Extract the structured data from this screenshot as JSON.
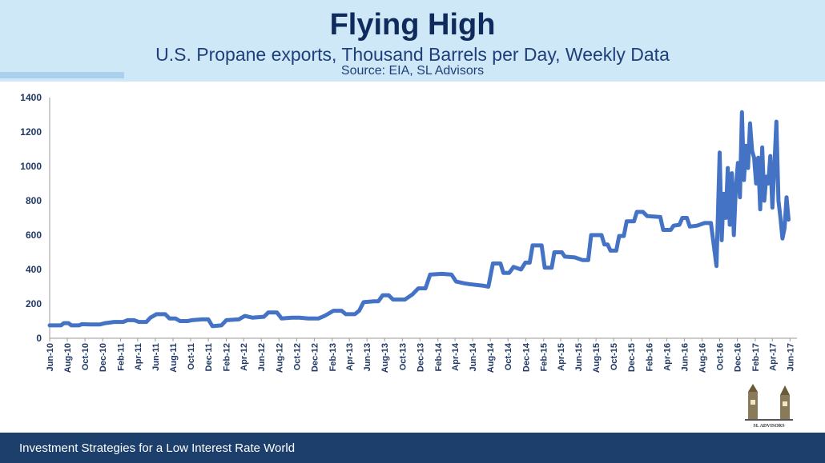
{
  "header": {
    "title": "Flying High",
    "subtitle": "U.S. Propane exports, Thousand Barrels per Day, Weekly Data",
    "source": "Source: EIA, SL Advisors"
  },
  "footer": {
    "text": "Investment Strategies for a Low Interest Rate World"
  },
  "logo": {
    "text": "SL ADVISORS"
  },
  "colors": {
    "line": "#4472c4",
    "header_bg": "#cfe8f7",
    "footer_bg": "#1c3f6b",
    "title": "#0f2a5c"
  },
  "chart_data": {
    "type": "line",
    "title": "",
    "xlabel": "",
    "ylabel": "",
    "ylim": [
      0,
      1400
    ],
    "yticks": [
      0,
      200,
      400,
      600,
      800,
      1000,
      1200,
      1400
    ],
    "xlim": [
      "2010-06-01",
      "2017-06-25"
    ],
    "x_tick_labels": [
      "Jun-10",
      "Aug-10",
      "Oct-10",
      "Dec-10",
      "Feb-11",
      "Apr-11",
      "Jun-11",
      "Aug-11",
      "Oct-11",
      "Dec-11",
      "Feb-12",
      "Apr-12",
      "Jun-12",
      "Aug-12",
      "Oct-12",
      "Dec-12",
      "Feb-13",
      "Apr-13",
      "Jun-13",
      "Aug-13",
      "Oct-13",
      "Dec-13",
      "Feb-14",
      "Apr-14",
      "Jun-14",
      "Aug-14",
      "Oct-14",
      "Dec-14",
      "Feb-15",
      "Apr-15",
      "Jun-15",
      "Aug-15",
      "Oct-15",
      "Dec-15",
      "Feb-16",
      "Apr-16",
      "Jun-16",
      "Aug-16",
      "Oct-16",
      "Dec-16",
      "Feb-17",
      "Apr-17",
      "Jun-17"
    ],
    "grid": false,
    "legend": "none",
    "series": [
      {
        "values": [
          [
            "2010-06-01",
            75
          ],
          [
            "2010-07-10",
            75
          ],
          [
            "2010-07-20",
            88
          ],
          [
            "2010-08-05",
            88
          ],
          [
            "2010-08-15",
            75
          ],
          [
            "2010-09-10",
            75
          ],
          [
            "2010-09-20",
            82
          ],
          [
            "2010-10-20",
            80
          ],
          [
            "2010-11-20",
            80
          ],
          [
            "2010-12-10",
            88
          ],
          [
            "2011-01-10",
            95
          ],
          [
            "2011-02-10",
            95
          ],
          [
            "2011-02-25",
            105
          ],
          [
            "2011-03-20",
            105
          ],
          [
            "2011-04-05",
            95
          ],
          [
            "2011-05-01",
            95
          ],
          [
            "2011-05-15",
            120
          ],
          [
            "2011-06-05",
            140
          ],
          [
            "2011-07-05",
            140
          ],
          [
            "2011-07-20",
            115
          ],
          [
            "2011-08-10",
            115
          ],
          [
            "2011-08-25",
            100
          ],
          [
            "2011-09-20",
            100
          ],
          [
            "2011-10-05",
            105
          ],
          [
            "2011-11-10",
            110
          ],
          [
            "2011-12-01",
            110
          ],
          [
            "2011-12-15",
            70
          ],
          [
            "2012-01-15",
            75
          ],
          [
            "2012-02-01",
            105
          ],
          [
            "2012-03-15",
            110
          ],
          [
            "2012-04-05",
            130
          ],
          [
            "2012-05-01",
            120
          ],
          [
            "2012-06-10",
            125
          ],
          [
            "2012-06-25",
            150
          ],
          [
            "2012-07-25",
            150
          ],
          [
            "2012-08-10",
            115
          ],
          [
            "2012-09-15",
            120
          ],
          [
            "2012-10-10",
            120
          ],
          [
            "2012-11-10",
            115
          ],
          [
            "2012-12-15",
            115
          ],
          [
            "2013-01-05",
            130
          ],
          [
            "2013-02-05",
            160
          ],
          [
            "2013-03-05",
            160
          ],
          [
            "2013-03-20",
            140
          ],
          [
            "2013-04-20",
            140
          ],
          [
            "2013-05-05",
            160
          ],
          [
            "2013-05-20",
            210
          ],
          [
            "2013-06-25",
            215
          ],
          [
            "2013-07-10",
            215
          ],
          [
            "2013-07-25",
            250
          ],
          [
            "2013-08-15",
            250
          ],
          [
            "2013-08-30",
            225
          ],
          [
            "2013-10-10",
            225
          ],
          [
            "2013-11-05",
            255
          ],
          [
            "2013-11-25",
            290
          ],
          [
            "2013-12-20",
            290
          ],
          [
            "2014-01-05",
            370
          ],
          [
            "2014-02-15",
            375
          ],
          [
            "2014-03-20",
            370
          ],
          [
            "2014-04-05",
            330
          ],
          [
            "2014-05-01",
            320
          ],
          [
            "2014-05-20",
            315
          ],
          [
            "2014-07-10",
            305
          ],
          [
            "2014-07-25",
            300
          ],
          [
            "2014-08-10",
            435
          ],
          [
            "2014-09-05",
            435
          ],
          [
            "2014-09-15",
            380
          ],
          [
            "2014-10-05",
            380
          ],
          [
            "2014-10-20",
            415
          ],
          [
            "2014-11-15",
            400
          ],
          [
            "2014-11-30",
            440
          ],
          [
            "2014-12-15",
            440
          ],
          [
            "2014-12-25",
            540
          ],
          [
            "2015-01-25",
            540
          ],
          [
            "2015-02-05",
            410
          ],
          [
            "2015-03-01",
            410
          ],
          [
            "2015-03-10",
            500
          ],
          [
            "2015-04-05",
            500
          ],
          [
            "2015-04-15",
            475
          ],
          [
            "2015-05-20",
            470
          ],
          [
            "2015-06-15",
            455
          ],
          [
            "2015-07-05",
            455
          ],
          [
            "2015-07-15",
            600
          ],
          [
            "2015-08-20",
            600
          ],
          [
            "2015-08-30",
            545
          ],
          [
            "2015-09-10",
            545
          ],
          [
            "2015-09-20",
            510
          ],
          [
            "2015-10-10",
            510
          ],
          [
            "2015-10-20",
            595
          ],
          [
            "2015-11-05",
            595
          ],
          [
            "2015-11-15",
            680
          ],
          [
            "2015-12-10",
            680
          ],
          [
            "2015-12-20",
            735
          ],
          [
            "2016-01-10",
            735
          ],
          [
            "2016-01-25",
            710
          ],
          [
            "2016-03-10",
            705
          ],
          [
            "2016-03-20",
            630
          ],
          [
            "2016-04-15",
            630
          ],
          [
            "2016-04-25",
            655
          ],
          [
            "2016-05-15",
            660
          ],
          [
            "2016-05-25",
            700
          ],
          [
            "2016-06-10",
            700
          ],
          [
            "2016-06-20",
            650
          ],
          [
            "2016-07-15",
            655
          ],
          [
            "2016-08-10",
            670
          ],
          [
            "2016-09-01",
            670
          ],
          [
            "2016-09-20",
            420
          ],
          [
            "2016-10-01",
            1080
          ],
          [
            "2016-10-08",
            570
          ],
          [
            "2016-10-15",
            840
          ],
          [
            "2016-10-22",
            700
          ],
          [
            "2016-10-29",
            990
          ],
          [
            "2016-11-05",
            660
          ],
          [
            "2016-11-12",
            960
          ],
          [
            "2016-11-19",
            600
          ],
          [
            "2016-11-26",
            880
          ],
          [
            "2016-12-03",
            1020
          ],
          [
            "2016-12-10",
            820
          ],
          [
            "2016-12-17",
            1315
          ],
          [
            "2016-12-24",
            920
          ],
          [
            "2016-12-31",
            1120
          ],
          [
            "2017-01-07",
            990
          ],
          [
            "2017-01-14",
            1250
          ],
          [
            "2017-01-21",
            1090
          ],
          [
            "2017-01-28",
            1050
          ],
          [
            "2017-02-04",
            900
          ],
          [
            "2017-02-11",
            1050
          ],
          [
            "2017-02-18",
            750
          ],
          [
            "2017-02-25",
            1110
          ],
          [
            "2017-03-04",
            800
          ],
          [
            "2017-03-11",
            940
          ],
          [
            "2017-03-18",
            900
          ],
          [
            "2017-03-25",
            1060
          ],
          [
            "2017-04-01",
            760
          ],
          [
            "2017-04-08",
            1000
          ],
          [
            "2017-04-15",
            1260
          ],
          [
            "2017-04-22",
            800
          ],
          [
            "2017-04-29",
            700
          ],
          [
            "2017-05-06",
            580
          ],
          [
            "2017-05-13",
            640
          ],
          [
            "2017-05-20",
            820
          ],
          [
            "2017-05-27",
            690
          ]
        ]
      }
    ]
  }
}
